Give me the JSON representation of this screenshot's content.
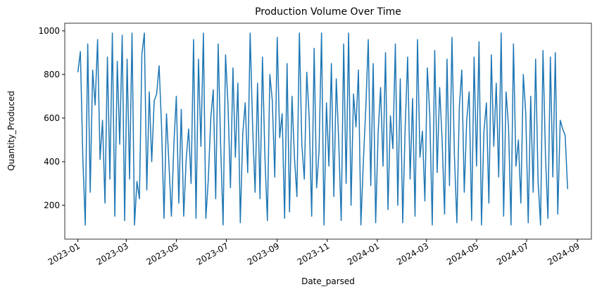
{
  "chart_data": {
    "type": "line",
    "title": "Production Volume Over Time",
    "x_label": "Date_parsed",
    "y_label": "Quantity_Produced",
    "color": "#1f77b4",
    "x": [
      0,
      3,
      6,
      9,
      12,
      15,
      18,
      21,
      24,
      27,
      30,
      33,
      36,
      39,
      42,
      45,
      48,
      51,
      54,
      57,
      60,
      63,
      66,
      69,
      72,
      75,
      78,
      81,
      84,
      87,
      90,
      93,
      96,
      99,
      102,
      105,
      108,
      111,
      114,
      117,
      120,
      123,
      126,
      129,
      132,
      135,
      138,
      141,
      144,
      147,
      150,
      153,
      156,
      159,
      162,
      165,
      168,
      171,
      174,
      177,
      180,
      183,
      186,
      189,
      192,
      195,
      198,
      201,
      204,
      207,
      210,
      213,
      216,
      219,
      222,
      225,
      228,
      231,
      234,
      237,
      240,
      243,
      246,
      249,
      252,
      255,
      258,
      261,
      264,
      267,
      270,
      273,
      276,
      279,
      282,
      285,
      288,
      291,
      294,
      297,
      300,
      303,
      306,
      309,
      312,
      315,
      318,
      321,
      324,
      327,
      330,
      333,
      336,
      339,
      342,
      345,
      348,
      351,
      354,
      357,
      360,
      363,
      366,
      369,
      372,
      375,
      378,
      381,
      384,
      387,
      390,
      393,
      396,
      399,
      402,
      405,
      408,
      411,
      414,
      417,
      420,
      423,
      426,
      429,
      432,
      435,
      438,
      441,
      444,
      447,
      450,
      453,
      456,
      459,
      462,
      465,
      468,
      471,
      474,
      477,
      480,
      483,
      486,
      489,
      492,
      495,
      498,
      501,
      504,
      507,
      510,
      513,
      516,
      519,
      522,
      525,
      528,
      531,
      534,
      537,
      540,
      543,
      546,
      549,
      552,
      555,
      558,
      561,
      564,
      567,
      570,
      573,
      576,
      579,
      582,
      585,
      588,
      591,
      594,
      597
    ],
    "values": [
      810,
      905,
      420,
      110,
      940,
      260,
      820,
      660,
      960,
      410,
      590,
      210,
      880,
      320,
      990,
      150,
      860,
      480,
      980,
      130,
      870,
      320,
      990,
      110,
      310,
      230,
      890,
      990,
      270,
      720,
      400,
      680,
      710,
      840,
      560,
      140,
      620,
      390,
      150,
      480,
      700,
      210,
      640,
      150,
      410,
      550,
      300,
      960,
      140,
      870,
      470,
      990,
      140,
      320,
      600,
      730,
      230,
      940,
      480,
      110,
      890,
      660,
      280,
      830,
      420,
      760,
      120,
      530,
      670,
      350,
      990,
      560,
      260,
      760,
      230,
      880,
      420,
      130,
      800,
      680,
      330,
      970,
      510,
      620,
      140,
      850,
      170,
      700,
      420,
      240,
      990,
      480,
      320,
      810,
      600,
      150,
      920,
      280,
      450,
      990,
      110,
      670,
      380,
      850,
      240,
      780,
      490,
      130,
      940,
      300,
      990,
      200,
      710,
      560,
      820,
      110,
      400,
      650,
      960,
      290,
      850,
      120,
      530,
      740,
      380,
      900,
      180,
      610,
      460,
      940,
      200,
      780,
      120,
      560,
      880,
      320,
      690,
      150,
      960,
      420,
      540,
      220,
      830,
      610,
      110,
      910,
      350,
      740,
      500,
      160,
      870,
      290,
      970,
      430,
      120,
      650,
      820,
      260,
      590,
      720,
      130,
      880,
      380,
      950,
      110,
      540,
      670,
      210,
      890,
      470,
      760,
      330,
      990,
      150,
      720,
      560,
      110,
      940,
      380,
      500,
      210,
      800,
      620,
      120,
      700,
      260,
      870,
      310,
      110,
      910,
      430,
      140,
      880,
      330,
      900,
      160,
      590,
      550,
      520,
      275
    ],
    "xlim": [
      -16,
      626
    ],
    "xticks": [
      {
        "value": 0,
        "label": "2023-01"
      },
      {
        "value": 59,
        "label": "2023-03"
      },
      {
        "value": 120,
        "label": "2023-05"
      },
      {
        "value": 181,
        "label": "2023-07"
      },
      {
        "value": 243,
        "label": "2023-09"
      },
      {
        "value": 304,
        "label": "2023-11"
      },
      {
        "value": 365,
        "label": "2024-01"
      },
      {
        "value": 425,
        "label": "2024-03"
      },
      {
        "value": 486,
        "label": "2024-05"
      },
      {
        "value": 547,
        "label": "2024-07"
      },
      {
        "value": 609,
        "label": "2024-09"
      }
    ],
    "ylim": [
      45,
      1035
    ],
    "yticks": [
      200,
      400,
      600,
      800,
      1000
    ]
  }
}
